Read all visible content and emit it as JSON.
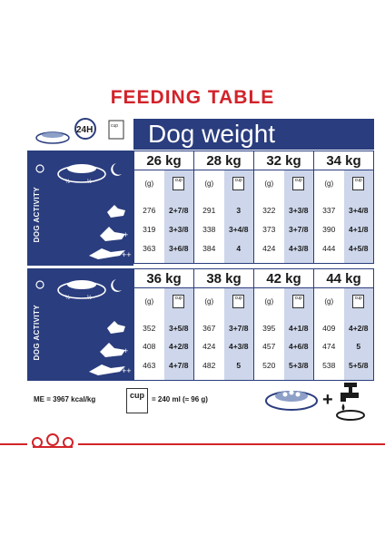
{
  "title": "FEEDING TABLE",
  "header": {
    "duration_label": "24H",
    "weight_title": "Dog weight",
    "cup_label": "cup"
  },
  "activity_label": "DOG ACTIVITY",
  "bowl_fractions": [
    "1/2",
    "1/2"
  ],
  "activity_levels": [
    "+",
    "++"
  ],
  "units": {
    "grams": "(g)",
    "cup": "cup"
  },
  "table1": {
    "weights": [
      "26 kg",
      "28 kg",
      "32 kg",
      "34 kg"
    ],
    "rows": [
      [
        [
          "276",
          "2+7/8"
        ],
        [
          "291",
          "3"
        ],
        [
          "322",
          "3+3/8"
        ],
        [
          "337",
          "3+4/8"
        ]
      ],
      [
        [
          "319",
          "3+3/8"
        ],
        [
          "338",
          "3+4/8"
        ],
        [
          "373",
          "3+7/8"
        ],
        [
          "390",
          "4+1/8"
        ]
      ],
      [
        [
          "363",
          "3+6/8"
        ],
        [
          "384",
          "4"
        ],
        [
          "424",
          "4+3/8"
        ],
        [
          "444",
          "4+5/8"
        ]
      ]
    ]
  },
  "table2": {
    "weights": [
      "36 kg",
      "38 kg",
      "42 kg",
      "44 kg"
    ],
    "rows": [
      [
        [
          "352",
          "3+5/8"
        ],
        [
          "367",
          "3+7/8"
        ],
        [
          "395",
          "4+1/8"
        ],
        [
          "409",
          "4+2/8"
        ]
      ],
      [
        [
          "408",
          "4+2/8"
        ],
        [
          "424",
          "4+3/8"
        ],
        [
          "457",
          "4+6/8"
        ],
        [
          "474",
          "5"
        ]
      ],
      [
        [
          "463",
          "4+7/8"
        ],
        [
          "482",
          "5"
        ],
        [
          "520",
          "5+3/8"
        ],
        [
          "538",
          "5+5/8"
        ]
      ]
    ]
  },
  "footer": {
    "me": "ME = 3967 kcal/kg",
    "cup_label": "cup",
    "equivalence": "= 240 ml (≈ 96 g)",
    "plus": "+"
  },
  "colors": {
    "brand_red": "#d2232a",
    "navy": "#2a3d7e",
    "cup_col": "#cdd6ea"
  }
}
